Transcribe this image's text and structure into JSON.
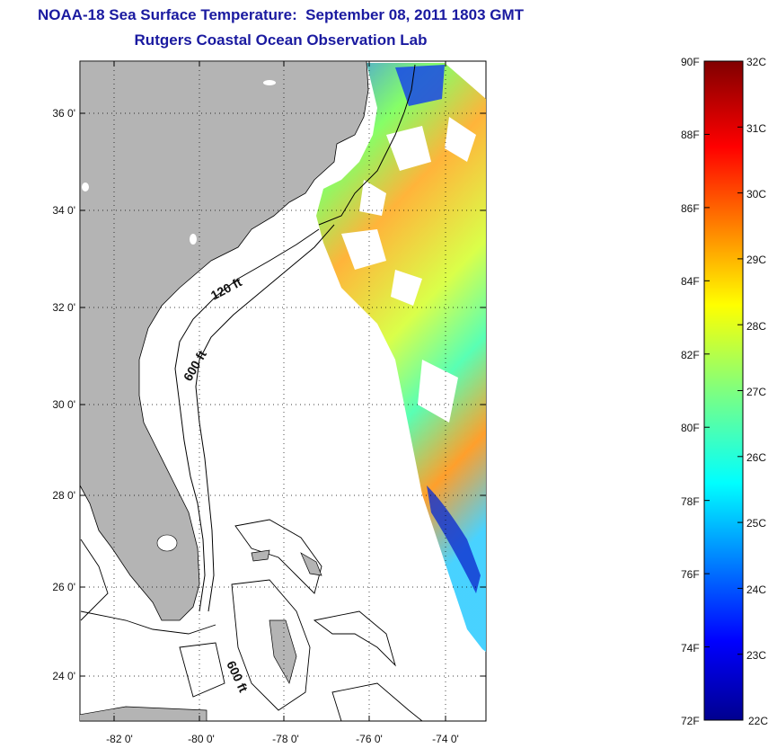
{
  "title": {
    "line1": "NOAA-18 Sea Surface Temperature:  September 08, 2011 1803 GMT",
    "line2": "Rutgers Coastal Ocean Observation Lab"
  },
  "map": {
    "lat_ticks": [
      "24 0'",
      "26 0'",
      "28 0'",
      "30 0'",
      "32 0'",
      "34 0'",
      "36 0'"
    ],
    "lon_ticks": [
      "-82 0'",
      "-80 0'",
      "-78 0'",
      "-76 0'",
      "-74 0'"
    ],
    "contour_labels": [
      "120 ft",
      "600 ft",
      "600 ft"
    ],
    "land_color": "#b4b4b4",
    "grid": true
  },
  "colorbar": {
    "fahrenheit": [
      "90F",
      "88F",
      "86F",
      "84F",
      "82F",
      "80F",
      "78F",
      "76F",
      "74F",
      "72F"
    ],
    "celsius": [
      "32C",
      "31C",
      "30C",
      "29C",
      "28C",
      "27C",
      "26C",
      "25C",
      "24C",
      "23C",
      "22C"
    ],
    "colormap": "jet",
    "min_c": 22,
    "max_c": 32
  }
}
